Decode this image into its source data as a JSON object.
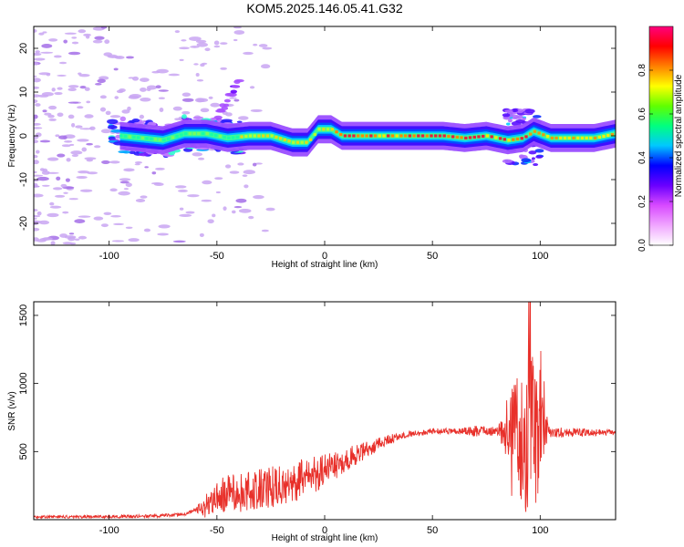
{
  "figure_title": "KOM5.2025.146.05.41.G32",
  "colors": {
    "snr_line": "#e8302a",
    "ridge": "#e8203a",
    "sparse_blob": "#c9a6f2",
    "axes": "#000000"
  },
  "chart_data": [
    {
      "type": "heatmap",
      "title": "KOM5.2025.146.05.41.G32",
      "xlabel": "Height of straight line (km)",
      "ylabel": "Frequency (Hz)",
      "xlim": [
        -135,
        135
      ],
      "ylim": [
        -25,
        25
      ],
      "x_ticks": [
        -100,
        -50,
        0,
        50,
        100
      ],
      "y_ticks": [
        -20,
        -10,
        0,
        10,
        20
      ],
      "grid": false,
      "colorbar": {
        "label": "Normalized spectral amplitude",
        "range": [
          0,
          1
        ],
        "ticks": [
          "0.0",
          "0.2",
          "0.4",
          "0.6",
          "0.8"
        ],
        "colormap": [
          "#ffffff",
          "#f0a6ff",
          "#d84aff",
          "#6a00ff",
          "#0000ff",
          "#00c8ff",
          "#00ff80",
          "#60ff00",
          "#ffff00",
          "#ff8000",
          "#ff0000",
          "#ff007f"
        ]
      },
      "ridge": [
        [
          -95,
          0
        ],
        [
          -85,
          -0.5
        ],
        [
          -75,
          -1
        ],
        [
          -65,
          0.5
        ],
        [
          -55,
          0.5
        ],
        [
          -45,
          -0.5
        ],
        [
          -35,
          0
        ],
        [
          -25,
          0
        ],
        [
          -15,
          -1.5
        ],
        [
          -8,
          -1.5
        ],
        [
          -3,
          1.5
        ],
        [
          3,
          1.5
        ],
        [
          8,
          0
        ],
        [
          20,
          0
        ],
        [
          40,
          0
        ],
        [
          55,
          0
        ],
        [
          65,
          -0.5
        ],
        [
          75,
          0
        ],
        [
          85,
          -1
        ],
        [
          92,
          -0.5
        ],
        [
          97,
          1
        ],
        [
          105,
          -0.5
        ],
        [
          115,
          -0.5
        ],
        [
          125,
          -0.5
        ],
        [
          135,
          0.5
        ]
      ],
      "features": [
        {
          "x": -45,
          "y": 8,
          "note": "detached upward patch"
        },
        {
          "x": 95,
          "y": 4,
          "note": "upper lobe"
        },
        {
          "x": 88,
          "y": -6,
          "note": "lower lobe"
        }
      ]
    },
    {
      "type": "line",
      "xlabel": "Height of straight line (km)",
      "ylabel": "SNR (v/v)",
      "xlim": [
        -135,
        135
      ],
      "ylim": [
        0,
        1600
      ],
      "x_ticks": [
        -100,
        -50,
        0,
        50,
        100
      ],
      "y_ticks": [
        500,
        1000,
        1500
      ],
      "grid": false,
      "series": [
        {
          "envelope": [
            [
              -135,
              20
            ],
            [
              -110,
              22
            ],
            [
              -80,
              25
            ],
            [
              -65,
              40
            ],
            [
              -55,
              100
            ],
            [
              -50,
              180
            ],
            [
              -40,
              200
            ],
            [
              -25,
              240
            ],
            [
              -10,
              300
            ],
            [
              0,
              360
            ],
            [
              10,
              440
            ],
            [
              20,
              520
            ],
            [
              30,
              590
            ],
            [
              40,
              630
            ],
            [
              50,
              650
            ],
            [
              60,
              650
            ],
            [
              70,
              650
            ],
            [
              80,
              650
            ],
            [
              85,
              650
            ],
            [
              88,
              650
            ],
            [
              92,
              650
            ],
            [
              98,
              650
            ],
            [
              100,
              650
            ],
            [
              110,
              640
            ],
            [
              120,
              640
            ],
            [
              135,
              640
            ]
          ],
          "noise_amp": [
            [
              -135,
              10
            ],
            [
              -60,
              12
            ],
            [
              -55,
              90
            ],
            [
              -45,
              140
            ],
            [
              -25,
              160
            ],
            [
              -10,
              150
            ],
            [
              0,
              120
            ],
            [
              20,
              60
            ],
            [
              35,
              25
            ],
            [
              60,
              20
            ],
            [
              70,
              40
            ],
            [
              80,
              30
            ],
            [
              85,
              250
            ],
            [
              90,
              500
            ],
            [
              95,
              700
            ],
            [
              100,
              450
            ],
            [
              104,
              40
            ],
            [
              135,
              20
            ]
          ]
        }
      ]
    }
  ]
}
